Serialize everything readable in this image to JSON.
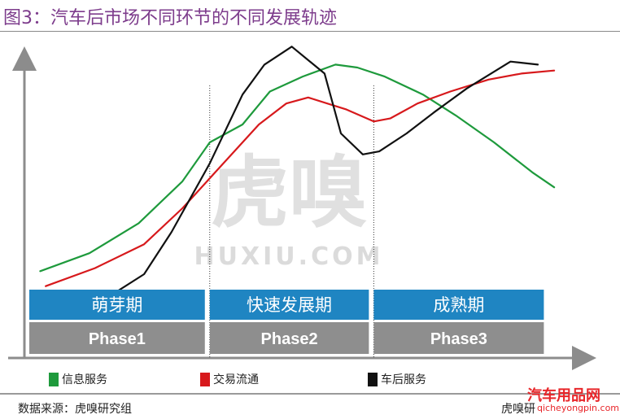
{
  "title": "图3：汽车后市场不同环节的不同发展轨迹",
  "source": "数据来源：虎嗅研究组",
  "footer_right": "虎嗅研",
  "watermark": {
    "logo": "虎嗅",
    "text": "HUXIU.COM",
    "site": "汽车用品网",
    "url": "qicheyongpin.com"
  },
  "chart_data": {
    "type": "line",
    "title": "图3：汽车后市场不同环节的不同发展轨迹",
    "xlabel": "",
    "ylabel": "",
    "xlim": [
      0,
      10
    ],
    "ylim": [
      0,
      10
    ],
    "grid": false,
    "legend_position": "bottom",
    "phases": [
      {
        "name": "萌芽期",
        "label": "Phase1",
        "x_start": 0,
        "x_end": 3.3
      },
      {
        "name": "快速发展期",
        "label": "Phase2",
        "x_start": 3.3,
        "x_end": 6.3
      },
      {
        "name": "成熟期",
        "label": "Phase3",
        "x_start": 6.3,
        "x_end": 9.5
      }
    ],
    "series": [
      {
        "name": "信息服务",
        "color": "#1e9a3c",
        "x": [
          0.2,
          1.1,
          2.0,
          2.8,
          3.3,
          3.9,
          4.4,
          5.0,
          5.6,
          6.0,
          6.5,
          7.2,
          7.8,
          8.5,
          9.2,
          9.6
        ],
        "y": [
          2.9,
          3.5,
          4.5,
          5.9,
          7.2,
          7.8,
          8.9,
          9.4,
          9.8,
          9.7,
          9.4,
          8.8,
          8.1,
          7.2,
          6.2,
          5.7
        ]
      },
      {
        "name": "交易流通",
        "color": "#d7191c",
        "x": [
          0.3,
          1.2,
          2.1,
          2.8,
          3.4,
          4.2,
          4.7,
          5.1,
          5.8,
          6.3,
          6.6,
          7.1,
          7.7,
          8.4,
          9.0,
          9.6
        ],
        "y": [
          2.4,
          3.0,
          3.8,
          5.0,
          6.2,
          7.8,
          8.5,
          8.7,
          8.3,
          7.9,
          8.0,
          8.5,
          8.9,
          9.3,
          9.5,
          9.6
        ]
      },
      {
        "name": "车后服务",
        "color": "#111111",
        "x": [
          0.6,
          1.5,
          2.1,
          2.6,
          3.3,
          3.9,
          4.3,
          4.8,
          5.4,
          5.7,
          6.1,
          6.4,
          6.9,
          7.4,
          8.0,
          8.8,
          9.3
        ],
        "y": [
          1.6,
          2.1,
          2.8,
          4.2,
          6.5,
          8.8,
          9.8,
          10.4,
          9.5,
          7.5,
          6.8,
          6.9,
          7.5,
          8.2,
          9.0,
          9.9,
          9.8
        ]
      }
    ]
  }
}
